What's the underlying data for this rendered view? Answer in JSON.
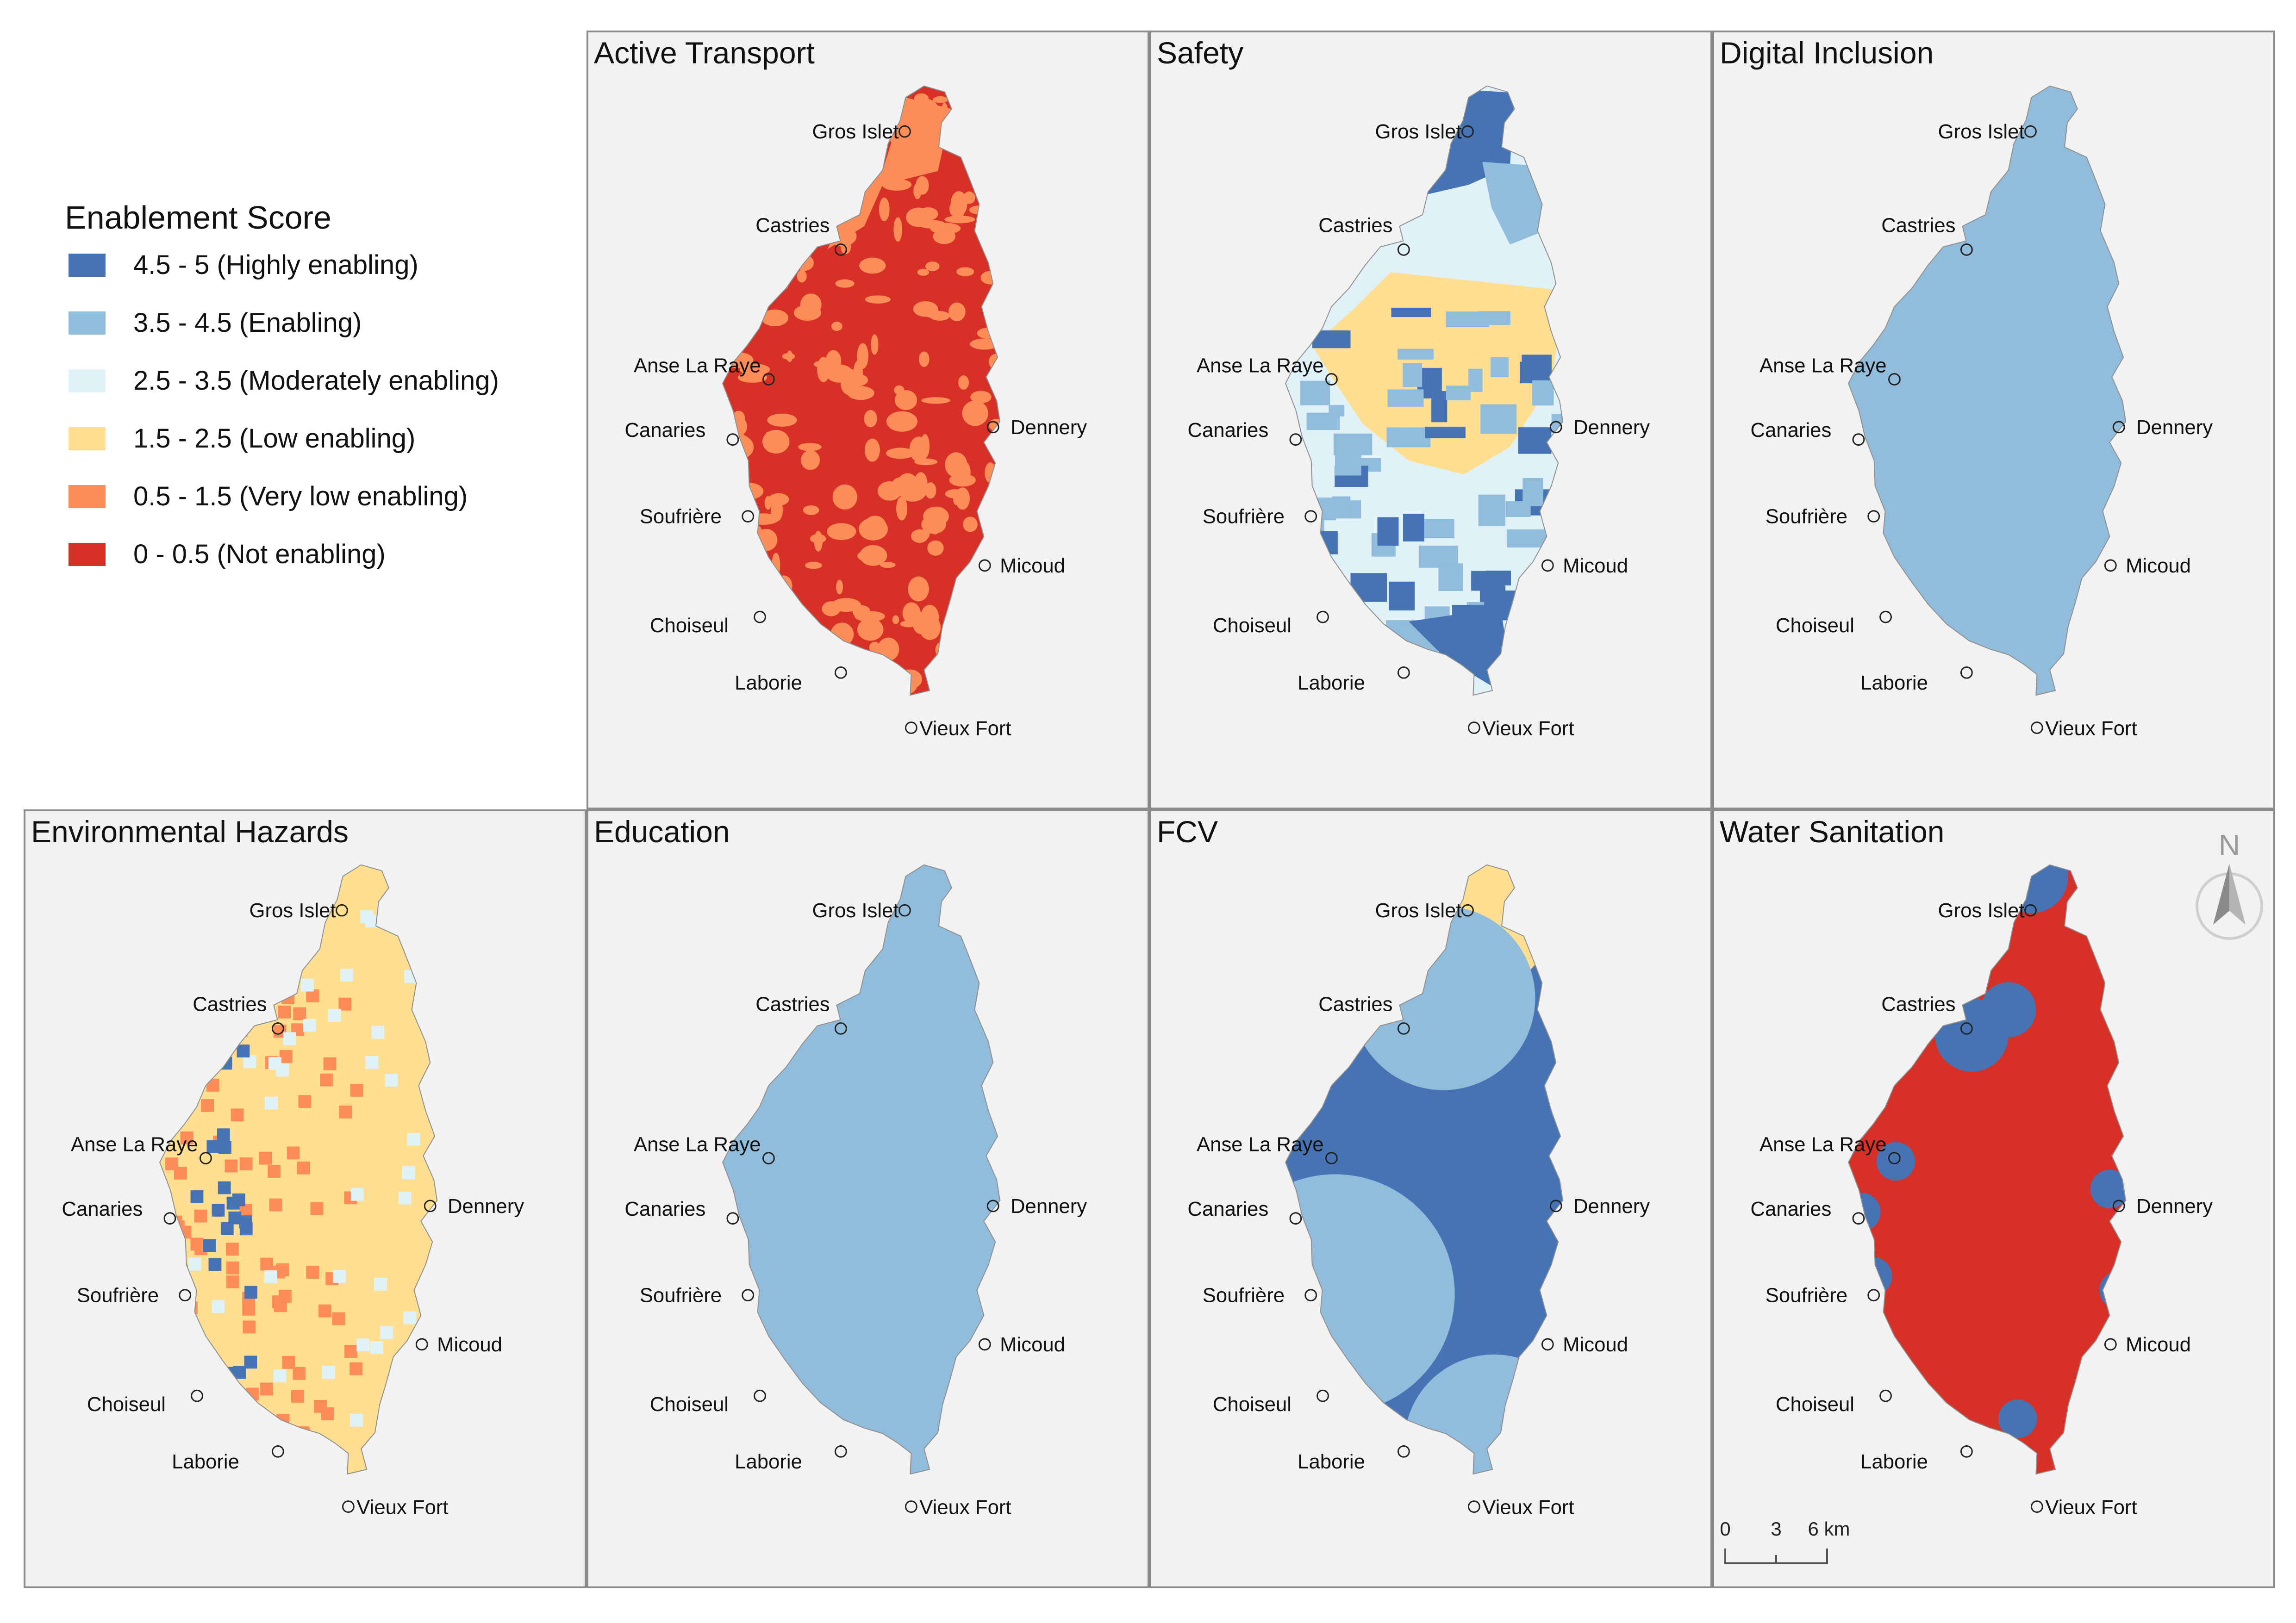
{
  "legend": {
    "title": "Enablement Score",
    "items": [
      {
        "label": "4.5 - 5 (Highly enabling)",
        "color": "#4573b4"
      },
      {
        "label": "3.5 - 4.5 (Enabling)",
        "color": "#91bcdb"
      },
      {
        "label": "2.5 - 3.5 (Moderately enabling)",
        "color": "#e0f2f8"
      },
      {
        "label": "1.5 - 2.5 (Low enabling)",
        "color": "#fedf92"
      },
      {
        "label": "0.5 - 1.5 (Very low enabling)",
        "color": "#fc8d59"
      },
      {
        "label": "0 - 0.5 (Not enabling)",
        "color": "#d73027"
      }
    ]
  },
  "towns": [
    "Gros Islet",
    "Castries",
    "Anse La Raye",
    "Dennery",
    "Canaries",
    "Soufrière",
    "Micoud",
    "Choiseul",
    "Laborie",
    "Vieux Fort"
  ],
  "panels": [
    {
      "title": "Active Transport",
      "base_color": "#d73027",
      "pattern": "active"
    },
    {
      "title": "Safety",
      "base_color": "#e0f2f8",
      "pattern": "safety"
    },
    {
      "title": "Digital Inclusion",
      "base_color": "#91bcdb",
      "pattern": "none"
    },
    {
      "title": "Environmental Hazards",
      "base_color": "#fedf92",
      "pattern": "env"
    },
    {
      "title": "Education",
      "base_color": "#91bcdb",
      "pattern": "none"
    },
    {
      "title": "FCV",
      "base_color": "#4573b4",
      "pattern": "fcv"
    },
    {
      "title": "Water Sanitation",
      "base_color": "#d73027",
      "pattern": "water"
    }
  ],
  "north_label": "N",
  "scale": {
    "labels": [
      "0",
      "3",
      "6 km"
    ]
  }
}
